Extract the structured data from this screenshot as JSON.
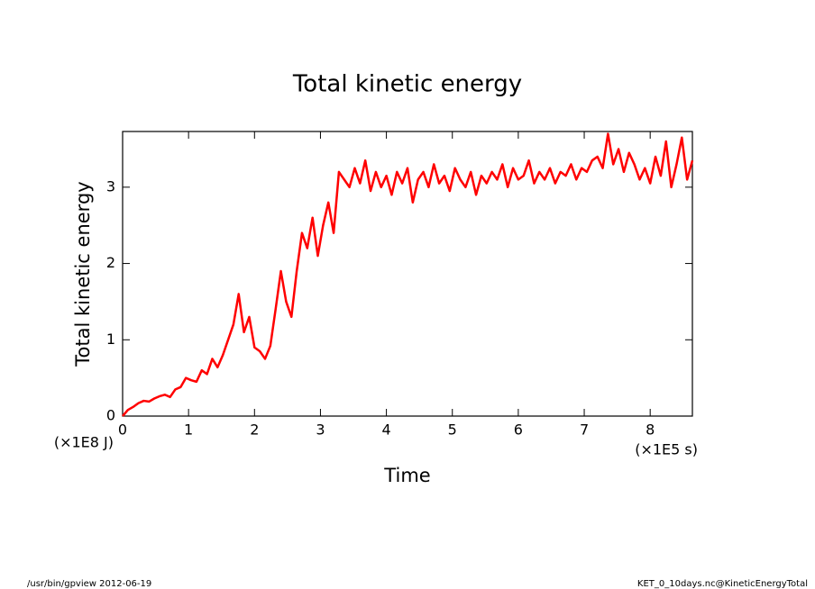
{
  "chart_data": {
    "type": "line",
    "title": "Total kinetic energy",
    "x_label": "Time",
    "y_label": "Total kinetic energy",
    "x_unit": "(×1E5 s)",
    "y_unit": "(×1E8 J)",
    "footer_left": "/usr/bin/gpview  2012-06-19",
    "footer_right": "KET_0_10days.nc@KineticEnergyTotal",
    "xlim": [
      0,
      8.64
    ],
    "ylim": [
      0,
      3.73
    ],
    "xticks": [
      0,
      1,
      2,
      3,
      4,
      5,
      6,
      7,
      8
    ],
    "yticks": [
      0,
      1,
      2,
      3
    ],
    "x": [
      0,
      0.08,
      0.16,
      0.24,
      0.32,
      0.4,
      0.48,
      0.56,
      0.64,
      0.72,
      0.8,
      0.88,
      0.96,
      1.04,
      1.12,
      1.2,
      1.28,
      1.36,
      1.44,
      1.52,
      1.6,
      1.68,
      1.76,
      1.84,
      1.92,
      2.0,
      2.08,
      2.16,
      2.24,
      2.32,
      2.4,
      2.48,
      2.56,
      2.64,
      2.72,
      2.8,
      2.88,
      2.96,
      3.04,
      3.12,
      3.2,
      3.28,
      3.36,
      3.44,
      3.52,
      3.6,
      3.68,
      3.76,
      3.84,
      3.92,
      4.0,
      4.08,
      4.16,
      4.24,
      4.32,
      4.4,
      4.48,
      4.56,
      4.64,
      4.72,
      4.8,
      4.88,
      4.96,
      5.04,
      5.12,
      5.2,
      5.28,
      5.36,
      5.44,
      5.52,
      5.6,
      5.68,
      5.76,
      5.84,
      5.92,
      6.0,
      6.08,
      6.16,
      6.24,
      6.32,
      6.4,
      6.48,
      6.56,
      6.64,
      6.72,
      6.8,
      6.88,
      6.96,
      7.04,
      7.12,
      7.2,
      7.28,
      7.36,
      7.44,
      7.52,
      7.6,
      7.68,
      7.76,
      7.84,
      7.92,
      8.0,
      8.08,
      8.16,
      8.24,
      8.32,
      8.4,
      8.48,
      8.56,
      8.64
    ],
    "series": [
      {
        "name": "Total kinetic energy",
        "color": "#ff0000",
        "values": [
          0,
          0.08,
          0.12,
          0.17,
          0.2,
          0.19,
          0.23,
          0.26,
          0.28,
          0.25,
          0.35,
          0.38,
          0.5,
          0.47,
          0.45,
          0.6,
          0.55,
          0.75,
          0.64,
          0.8,
          1.0,
          1.2,
          1.6,
          1.1,
          1.3,
          0.9,
          0.85,
          0.75,
          0.92,
          1.4,
          1.9,
          1.5,
          1.3,
          1.9,
          2.4,
          2.2,
          2.6,
          2.1,
          2.5,
          2.8,
          2.4,
          3.2,
          3.1,
          3.0,
          3.25,
          3.05,
          3.35,
          2.95,
          3.2,
          3.0,
          3.15,
          2.9,
          3.2,
          3.05,
          3.25,
          2.8,
          3.1,
          3.2,
          3.0,
          3.3,
          3.05,
          3.15,
          2.95,
          3.25,
          3.1,
          3.0,
          3.2,
          2.9,
          3.15,
          3.05,
          3.2,
          3.1,
          3.3,
          3.0,
          3.25,
          3.1,
          3.15,
          3.35,
          3.05,
          3.2,
          3.1,
          3.25,
          3.05,
          3.2,
          3.15,
          3.3,
          3.1,
          3.25,
          3.2,
          3.35,
          3.4,
          3.25,
          3.7,
          3.3,
          3.5,
          3.2,
          3.45,
          3.3,
          3.1,
          3.25,
          3.05,
          3.4,
          3.15,
          3.6,
          3.0,
          3.3,
          3.65,
          3.1,
          3.35
        ]
      }
    ]
  }
}
